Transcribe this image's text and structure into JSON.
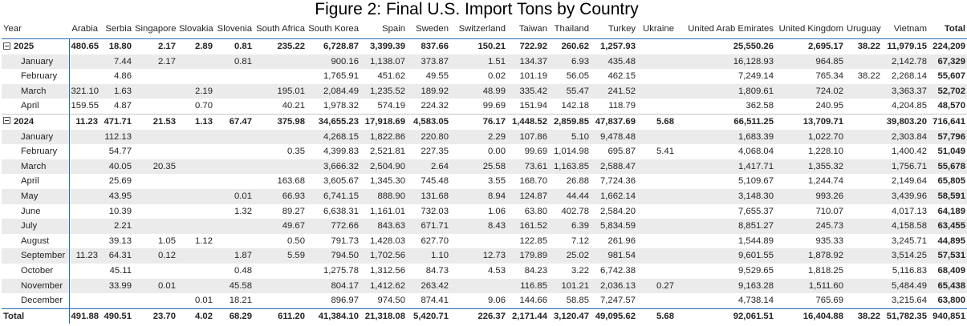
{
  "title": "Figure 2: Final U.S. Import Tons by Country",
  "columns": [
    "Year",
    "Arabia",
    "Serbia",
    "Singapore",
    "Slovakia",
    "Slovenia",
    "South Africa",
    "South Korea",
    "Spain",
    "Sweden",
    "Switzerland",
    "Taiwan",
    "Thailand",
    "Turkey",
    "Ukraine",
    "United Arab Emirates",
    "United Kingdom",
    "Uruguay",
    "Vietnam",
    "Total"
  ],
  "rows": [
    {
      "level": "year",
      "label": "2025",
      "values": [
        "480.65",
        "18.80",
        "2.17",
        "2.89",
        "0.81",
        "235.22",
        "6,728.87",
        "3,399.39",
        "837.66",
        "150.21",
        "722.92",
        "260.62",
        "1,257.93",
        "",
        "25,550.26",
        "2,695.17",
        "38.22",
        "11,979.15",
        "224,209"
      ]
    },
    {
      "level": "month",
      "label": "January",
      "values": [
        "",
        "7.44",
        "2.17",
        "",
        "0.81",
        "",
        "900.16",
        "1,138.07",
        "373.87",
        "1.51",
        "134.37",
        "6.93",
        "435.48",
        "",
        "16,128.93",
        "964.85",
        "",
        "2,142.78",
        "67,329"
      ]
    },
    {
      "level": "month",
      "label": "February",
      "values": [
        "",
        "4.86",
        "",
        "",
        "",
        "",
        "1,765.91",
        "451.62",
        "49.55",
        "0.02",
        "101.19",
        "56.05",
        "462.15",
        "",
        "7,249.14",
        "765.34",
        "38.22",
        "2,268.14",
        "55,607"
      ]
    },
    {
      "level": "month",
      "label": "March",
      "values": [
        "321.10",
        "1.63",
        "",
        "2.19",
        "",
        "195.01",
        "2,084.49",
        "1,235.52",
        "189.92",
        "48.99",
        "335.42",
        "55.47",
        "241.52",
        "",
        "1,809.61",
        "724.02",
        "",
        "3,363.37",
        "52,702"
      ]
    },
    {
      "level": "month",
      "label": "April",
      "values": [
        "159.55",
        "4.87",
        "",
        "0.70",
        "",
        "40.21",
        "1,978.32",
        "574.19",
        "224.32",
        "99.69",
        "151.94",
        "142.18",
        "118.79",
        "",
        "362.58",
        "240.95",
        "",
        "4,204.85",
        "48,570"
      ]
    },
    {
      "level": "year",
      "label": "2024",
      "values": [
        "11.23",
        "471.71",
        "21.53",
        "1.13",
        "67.47",
        "375.98",
        "34,655.23",
        "17,918.69",
        "4,583.05",
        "76.17",
        "1,448.52",
        "2,859.85",
        "47,837.69",
        "5.68",
        "66,511.25",
        "13,709.71",
        "",
        "39,803.20",
        "716,641"
      ]
    },
    {
      "level": "month",
      "label": "January",
      "values": [
        "",
        "112.13",
        "",
        "",
        "",
        "",
        "4,268.15",
        "1,822.86",
        "220.80",
        "2.29",
        "107.86",
        "5.10",
        "9,478.48",
        "",
        "1,683.39",
        "1,022.70",
        "",
        "2,303.84",
        "57,796"
      ]
    },
    {
      "level": "month",
      "label": "February",
      "values": [
        "",
        "54.77",
        "",
        "",
        "",
        "0.35",
        "4,399.83",
        "2,521.81",
        "227.35",
        "0.00",
        "99.69",
        "1,014.98",
        "695.87",
        "5.41",
        "4,068.04",
        "1,228.10",
        "",
        "1,400.42",
        "51,049"
      ]
    },
    {
      "level": "month",
      "label": "March",
      "values": [
        "",
        "40.05",
        "20.35",
        "",
        "",
        "",
        "3,666.32",
        "2,504.90",
        "2.64",
        "25.58",
        "73.61",
        "1,163.85",
        "2,588.47",
        "",
        "1,417.71",
        "1,355.32",
        "",
        "1,756.71",
        "55,678"
      ]
    },
    {
      "level": "month",
      "label": "April",
      "values": [
        "",
        "25.69",
        "",
        "",
        "",
        "163.68",
        "3,605.67",
        "1,345.30",
        "745.48",
        "3.55",
        "168.70",
        "26.88",
        "7,724.36",
        "",
        "5,109.67",
        "1,244.74",
        "",
        "2,149.64",
        "65,805"
      ]
    },
    {
      "level": "month",
      "label": "May",
      "values": [
        "",
        "43.95",
        "",
        "",
        "0.01",
        "66.93",
        "6,741.15",
        "888.90",
        "131.68",
        "8.94",
        "124.87",
        "44.44",
        "1,662.14",
        "",
        "3,148.30",
        "993.26",
        "",
        "3,439.96",
        "58,591"
      ]
    },
    {
      "level": "month",
      "label": "June",
      "values": [
        "",
        "10.39",
        "",
        "",
        "1.32",
        "89.27",
        "6,638.31",
        "1,161.01",
        "732.03",
        "1.06",
        "63.80",
        "402.78",
        "2,584.20",
        "",
        "7,655.37",
        "710.07",
        "",
        "4,017.13",
        "64,189"
      ]
    },
    {
      "level": "month",
      "label": "July",
      "values": [
        "",
        "2.21",
        "",
        "",
        "",
        "49.67",
        "772.66",
        "843.63",
        "671.71",
        "8.43",
        "161.52",
        "6.39",
        "5,834.59",
        "",
        "8,851.27",
        "245.73",
        "",
        "4,158.58",
        "63,455"
      ]
    },
    {
      "level": "month",
      "label": "August",
      "values": [
        "",
        "39.13",
        "1.05",
        "1.12",
        "",
        "0.50",
        "791.73",
        "1,428.03",
        "627.70",
        "",
        "122.85",
        "7.12",
        "261.96",
        "",
        "1,544.89",
        "935.33",
        "",
        "3,245.71",
        "44,895"
      ]
    },
    {
      "level": "month",
      "label": "September",
      "values": [
        "11.23",
        "64.31",
        "0.12",
        "",
        "1.87",
        "5.59",
        "794.50",
        "1,702.56",
        "1.10",
        "12.73",
        "179.89",
        "25.02",
        "981.54",
        "",
        "9,601.55",
        "1,878.92",
        "",
        "3,514.25",
        "57,531"
      ]
    },
    {
      "level": "month",
      "label": "October",
      "values": [
        "",
        "45.11",
        "",
        "",
        "0.48",
        "",
        "1,275.78",
        "1,312.56",
        "84.73",
        "4.53",
        "84.23",
        "3.22",
        "6,742.38",
        "",
        "9,529.65",
        "1,818.25",
        "",
        "5,116.83",
        "68,409"
      ]
    },
    {
      "level": "month",
      "label": "November",
      "values": [
        "",
        "33.99",
        "0.01",
        "",
        "45.58",
        "",
        "804.17",
        "1,412.62",
        "263.42",
        "",
        "116.85",
        "101.21",
        "2,036.13",
        "0.27",
        "9,163.28",
        "1,511.60",
        "",
        "5,484.49",
        "65,438"
      ]
    },
    {
      "level": "month",
      "label": "December",
      "values": [
        "",
        "",
        "",
        "0.01",
        "18.21",
        "",
        "896.97",
        "974.50",
        "874.41",
        "9.06",
        "144.66",
        "58.85",
        "7,247.57",
        "",
        "4,738.14",
        "765.69",
        "",
        "3,215.64",
        "63,800"
      ]
    },
    {
      "level": "grand",
      "label": "Total",
      "values": [
        "491.88",
        "490.51",
        "23.70",
        "4.02",
        "68.29",
        "611.20",
        "41,384.10",
        "21,318.08",
        "5,420.71",
        "226.37",
        "2,171.44",
        "3,120.47",
        "49,095.62",
        "5.68",
        "92,061.51",
        "16,404.88",
        "38.22",
        "51,782.35",
        "940,851"
      ]
    }
  ]
}
